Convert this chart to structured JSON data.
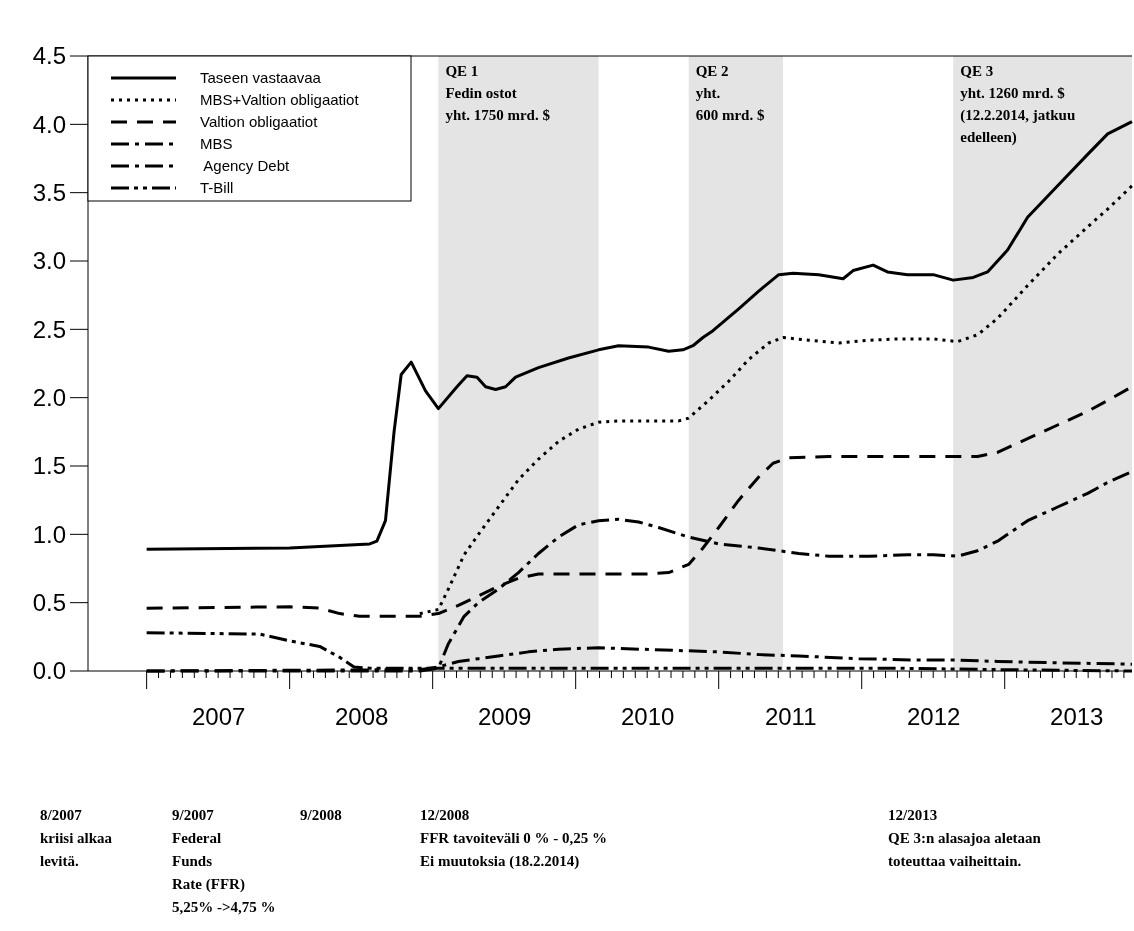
{
  "chart_data": {
    "type": "line",
    "xlim": [
      2006.59,
      2013.89
    ],
    "ylim": [
      0,
      4.5
    ],
    "xticks": [
      {
        "value": 2007.5,
        "label": "2007"
      },
      {
        "value": 2008.5,
        "label": "2008"
      },
      {
        "value": 2009.5,
        "label": "2009"
      },
      {
        "value": 2010.5,
        "label": "2010"
      },
      {
        "value": 2011.5,
        "label": "2011"
      },
      {
        "value": 2012.5,
        "label": "2012"
      },
      {
        "value": 2013.5,
        "label": "2013"
      }
    ],
    "yticks": [
      {
        "value": 0,
        "label": "0.0"
      },
      {
        "value": 0.5,
        "label": "0.5"
      },
      {
        "value": 1,
        "label": "1.0"
      },
      {
        "value": 1.5,
        "label": "1.5"
      },
      {
        "value": 2,
        "label": "2.0"
      },
      {
        "value": 2.5,
        "label": "2.5"
      },
      {
        "value": 3,
        "label": "3.0"
      },
      {
        "value": 3.5,
        "label": "3.5"
      },
      {
        "value": 4,
        "label": "4.0"
      },
      {
        "value": 4.5,
        "label": "4.5"
      }
    ],
    "grid": false,
    "legend": "top left",
    "marker": "none",
    "series": [
      {
        "name": "Taseen vastaavaa",
        "color": "#000000",
        "line_style": "solid",
        "x": [
          2007.0,
          2008.0,
          2008.56,
          2008.61,
          2008.67,
          2008.73,
          2008.78,
          2008.85,
          2008.95,
          2009.04,
          2009.17,
          2009.24,
          2009.31,
          2009.37,
          2009.44,
          2009.51,
          2009.58,
          2009.74,
          2009.95,
          2010.16,
          2010.3,
          2010.51,
          2010.65,
          2010.75,
          2010.82,
          2010.89,
          2010.96,
          2011.14,
          2011.28,
          2011.42,
          2011.52,
          2011.7,
          2011.87,
          2011.94,
          2012.08,
          2012.18,
          2012.32,
          2012.5,
          2012.64,
          2012.78,
          2012.88,
          2013.02,
          2013.16,
          2013.37,
          2013.58,
          2013.72,
          2013.89
        ],
        "values": [
          0.89,
          0.9,
          0.93,
          0.95,
          1.1,
          1.75,
          2.17,
          2.26,
          2.05,
          1.92,
          2.08,
          2.16,
          2.15,
          2.08,
          2.06,
          2.08,
          2.15,
          2.22,
          2.29,
          2.35,
          2.38,
          2.37,
          2.34,
          2.35,
          2.38,
          2.44,
          2.49,
          2.65,
          2.78,
          2.9,
          2.91,
          2.9,
          2.87,
          2.93,
          2.97,
          2.92,
          2.9,
          2.9,
          2.86,
          2.88,
          2.92,
          3.08,
          3.32,
          3.55,
          3.78,
          3.93,
          4.02
        ]
      },
      {
        "name": "MBS+Valtion obligaatiot",
        "color": "#000000",
        "line_style": "dotted",
        "x": [
          2008.91,
          2009.04,
          2009.11,
          2009.22,
          2009.32,
          2009.46,
          2009.6,
          2009.74,
          2009.88,
          2010.02,
          2010.16,
          2010.3,
          2010.72,
          2010.79,
          2010.93,
          2011.07,
          2011.21,
          2011.35,
          2011.45,
          2011.63,
          2011.84,
          2012.05,
          2012.25,
          2012.5,
          2012.67,
          2012.81,
          2012.95,
          2013.16,
          2013.37,
          2013.58,
          2013.72,
          2013.89
        ],
        "values": [
          0.42,
          0.45,
          0.6,
          0.85,
          1.0,
          1.2,
          1.4,
          1.55,
          1.68,
          1.77,
          1.82,
          1.83,
          1.83,
          1.85,
          1.98,
          2.12,
          2.28,
          2.4,
          2.44,
          2.42,
          2.4,
          2.42,
          2.43,
          2.43,
          2.41,
          2.46,
          2.58,
          2.82,
          3.05,
          3.25,
          3.38,
          3.55
        ]
      },
      {
        "name": "Valtion obligaatiot",
        "color": "#000000",
        "line_style": "dashed",
        "x": [
          2007.0,
          2008.0,
          2008.21,
          2008.35,
          2008.49,
          2008.91,
          2009.04,
          2009.18,
          2009.32,
          2009.46,
          2009.6,
          2009.74,
          2009.88,
          2010.51,
          2010.65,
          2010.79,
          2010.89,
          2011.0,
          2011.14,
          2011.28,
          2011.38,
          2011.49,
          2011.77,
          2012.05,
          2012.5,
          2012.81,
          2012.95,
          2013.16,
          2013.37,
          2013.58,
          2013.72,
          2013.89
        ],
        "values": [
          0.46,
          0.47,
          0.46,
          0.42,
          0.4,
          0.4,
          0.42,
          0.48,
          0.55,
          0.62,
          0.68,
          0.71,
          0.71,
          0.71,
          0.72,
          0.78,
          0.9,
          1.05,
          1.25,
          1.42,
          1.52,
          1.56,
          1.57,
          1.57,
          1.57,
          1.57,
          1.6,
          1.7,
          1.8,
          1.9,
          1.98,
          2.08
        ]
      },
      {
        "name": "MBS",
        "color": "#000000",
        "line_style": "dashdot",
        "x": [
          2007.0,
          2008.91,
          2009.04,
          2009.11,
          2009.22,
          2009.32,
          2009.46,
          2009.6,
          2009.74,
          2009.88,
          2010.02,
          2010.16,
          2010.3,
          2010.44,
          2010.58,
          2010.79,
          2011.0,
          2011.28,
          2011.56,
          2011.77,
          2012.05,
          2012.32,
          2012.5,
          2012.67,
          2012.81,
          2012.95,
          2013.16,
          2013.37,
          2013.58,
          2013.72,
          2013.89
        ],
        "values": [
          0.0,
          0.0,
          0.02,
          0.2,
          0.4,
          0.5,
          0.6,
          0.72,
          0.86,
          0.98,
          1.07,
          1.1,
          1.11,
          1.09,
          1.05,
          0.98,
          0.93,
          0.9,
          0.86,
          0.84,
          0.84,
          0.85,
          0.85,
          0.84,
          0.88,
          0.95,
          1.1,
          1.2,
          1.3,
          1.38,
          1.46
        ]
      },
      {
        "name": " Agency Debt",
        "color": "#000000",
        "line_style": "dashdot",
        "x": [
          2007.0,
          2008.91,
          2009.04,
          2009.18,
          2009.32,
          2009.46,
          2009.67,
          2009.88,
          2010.16,
          2010.44,
          2010.72,
          2011.0,
          2011.28,
          2011.56,
          2011.98,
          2012.39,
          2012.67,
          2012.95,
          2013.37,
          2013.89
        ],
        "values": [
          0.0,
          0.01,
          0.03,
          0.07,
          0.09,
          0.11,
          0.14,
          0.16,
          0.17,
          0.16,
          0.15,
          0.14,
          0.12,
          0.11,
          0.09,
          0.08,
          0.08,
          0.07,
          0.06,
          0.05
        ]
      },
      {
        "name": "T-Bill",
        "color": "#000000",
        "line_style": "dashdotdot",
        "x": [
          2007.0,
          2007.79,
          2008.0,
          2008.21,
          2008.35,
          2008.45,
          2008.56,
          2008.91,
          2009.04,
          2009.46,
          2010.86,
          2012.25,
          2012.95,
          2013.89
        ],
        "values": [
          0.28,
          0.27,
          0.22,
          0.18,
          0.1,
          0.03,
          0.02,
          0.02,
          0.02,
          0.02,
          0.02,
          0.02,
          0.01,
          0.0
        ]
      }
    ],
    "bands": [
      {
        "axis": "x",
        "from": 2009.04,
        "to": 2010.16,
        "label": "QE 1\nFedin ostot\nyht. 1750 mrd. $",
        "color": "#e4e4e4"
      },
      {
        "axis": "x",
        "from": 2010.79,
        "to": 2011.45,
        "label": "QE 2\nyht.\n600 mrd. $",
        "color": "#e4e4e4"
      },
      {
        "axis": "x",
        "from": 2012.64,
        "to": 2013.89,
        "label": "QE 3\nyht. 1260 mrd. $\n(12.2.2014, jatkuu\nedelleen)",
        "color": "#e4e4e4"
      }
    ],
    "annotations": [
      "8/2007\nkriisi alkaa\nlevitä.",
      "9/2007\nFederal\nFunds\nRate (FFR)\n5,25% ->4,75 %",
      "9/2008",
      "12/2008\nFFR tavoiteväli 0 % - 0,25 %\nEi muutoksia (18.2.2014)",
      "12/2013\nQE 3:n alasajoa aletaan\ntoteuttaa vaiheittain."
    ]
  }
}
